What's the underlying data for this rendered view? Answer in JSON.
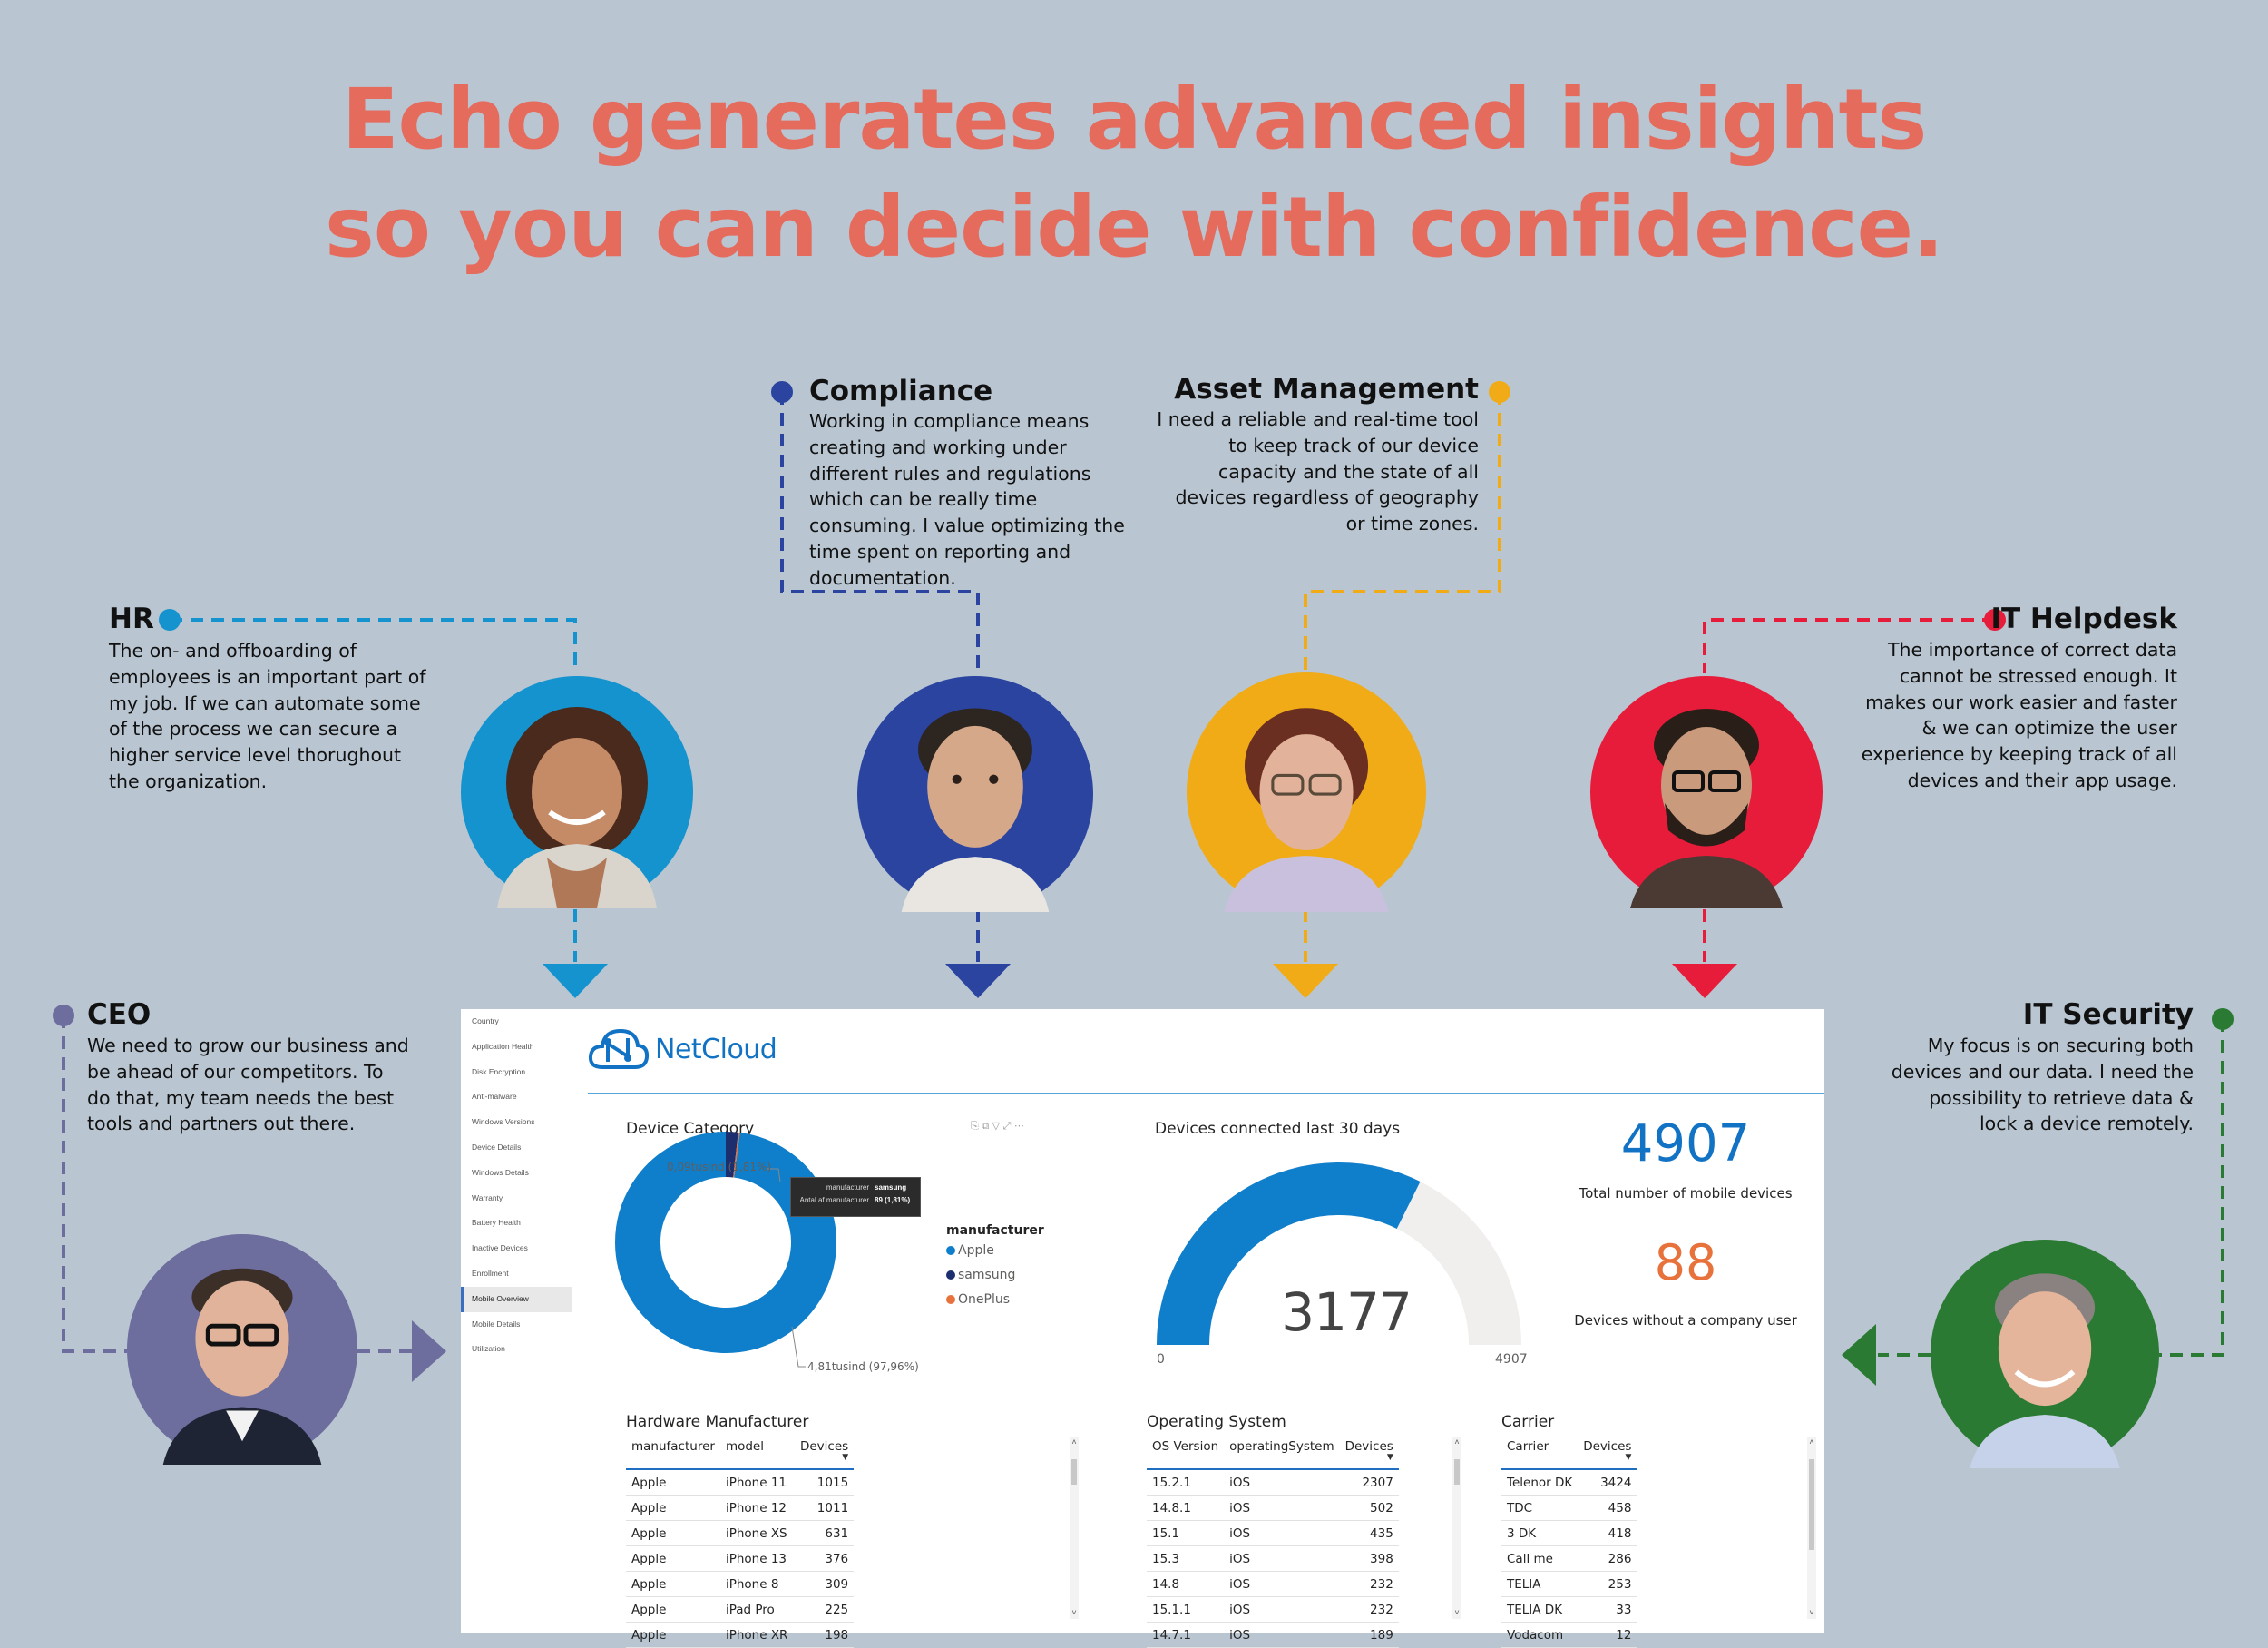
{
  "headline": {
    "line1": "Echo generates advanced insights",
    "line2": "so you can decide with confidence."
  },
  "colors": {
    "headline": "#e56b5d",
    "background": "#b9c6d2",
    "hr": "#1493cf",
    "compliance": "#2a44a0",
    "asset": "#f0ab17",
    "helpdesk": "#e61c3a",
    "ceo": "#6d6d9e",
    "security": "#2b7a33"
  },
  "personas": {
    "hr": {
      "title": "HR",
      "lines": [
        "The on- and offboarding of",
        "employees is an important part of",
        "my job. If we can automate some",
        "of the process we can secure a",
        "higher service level thorughout",
        "the organization."
      ]
    },
    "compliance": {
      "title": "Compliance",
      "lines": [
        "Working in compliance means",
        "creating and working under",
        "different rules and regulations",
        "which can be really time",
        "consuming. I value optimizing the",
        "time spent on reporting and",
        "documentation."
      ]
    },
    "asset": {
      "title": "Asset Management",
      "lines": [
        "I need a reliable and real-time tool",
        "to keep track of our device",
        "capacity and the state of all",
        "devices regardless of geography",
        "or time zones."
      ]
    },
    "helpdesk": {
      "title": "IT Helpdesk",
      "lines": [
        "The importance of correct data",
        "cannot be stressed enough. It",
        "makes our work easier and faster",
        "& we can optimize the user",
        "experience by keeping track of all",
        "devices and their app usage."
      ]
    },
    "ceo": {
      "title": "CEO",
      "lines": [
        "We need to grow our business and",
        "be ahead of our competitors. To",
        "do that, my team needs the best",
        "tools and partners out there."
      ]
    },
    "security": {
      "title": "IT Security",
      "lines": [
        "My focus is on securing both",
        "devices and our data. I need the",
        "possibility to retrieve data &",
        "lock a device remotely."
      ]
    }
  },
  "dashboard": {
    "brand": "NetCloud",
    "nav_items": [
      "Country",
      "Application Health",
      "Disk Encryption",
      "Anti-malware",
      "Windows Versions",
      "Device Details",
      "Windows Details",
      "Warranty",
      "Battery Health",
      "Inactive Devices",
      "Enrollment",
      "Mobile Overview",
      "Mobile Details",
      "Utilization"
    ],
    "active_nav": "Mobile Overview",
    "device_category": {
      "title": "Device Category",
      "label_small": "0,09tusind (1,81%)",
      "label_large": "4,81tusind (97,96%)",
      "tooltip": {
        "row1_key": "manufacturer",
        "row1_val": "samsung",
        "row2_key": "Antal af manufacturer",
        "row2_val": "89 (1,81%)"
      },
      "legend_title": "manufacturer",
      "legend": [
        {
          "name": "Apple",
          "color": "#0f7ecb"
        },
        {
          "name": "samsung",
          "color": "#1d2e6e"
        },
        {
          "name": "OnePlus",
          "color": "#e8723c"
        }
      ]
    },
    "gauge": {
      "title": "Devices connected last 30 days",
      "value": "3177",
      "min": "0",
      "max": "4907",
      "fraction": 0.647
    },
    "kpis": {
      "total_value": "4907",
      "total_label": "Total number of mobile devices",
      "nouser_value": "88",
      "nouser_label": "Devices without a company user"
    },
    "hardware": {
      "title": "Hardware Manufacturer",
      "headers": [
        "manufacturer",
        "model",
        "Devices"
      ],
      "rows": [
        [
          "Apple",
          "iPhone 11",
          "1015"
        ],
        [
          "Apple",
          "iPhone 12",
          "1011"
        ],
        [
          "Apple",
          "iPhone XS",
          "631"
        ],
        [
          "Apple",
          "iPhone 13",
          "376"
        ],
        [
          "Apple",
          "iPhone 8",
          "309"
        ],
        [
          "Apple",
          "iPad Pro",
          "225"
        ],
        [
          "Apple",
          "iPhone XR",
          "198"
        ]
      ]
    },
    "os": {
      "title": "Operating System",
      "headers": [
        "OS Version",
        "operatingSystem",
        "Devices"
      ],
      "rows": [
        [
          "15.2.1",
          "iOS",
          "2307"
        ],
        [
          "14.8.1",
          "iOS",
          "502"
        ],
        [
          "15.1",
          "iOS",
          "435"
        ],
        [
          "15.3",
          "iOS",
          "398"
        ],
        [
          "14.8",
          "iOS",
          "232"
        ],
        [
          "15.1.1",
          "iOS",
          "232"
        ],
        [
          "14.7.1",
          "iOS",
          "189"
        ]
      ]
    },
    "carrier": {
      "title": "Carrier",
      "headers": [
        "Carrier",
        "Devices"
      ],
      "rows": [
        [
          "Telenor DK",
          "3424"
        ],
        [
          "TDC",
          "458"
        ],
        [
          "3 DK",
          "418"
        ],
        [
          "Call me",
          "286"
        ],
        [
          "TELIA",
          "253"
        ],
        [
          "TELIA DK",
          "33"
        ],
        [
          "Vodacom",
          "12"
        ]
      ]
    }
  }
}
